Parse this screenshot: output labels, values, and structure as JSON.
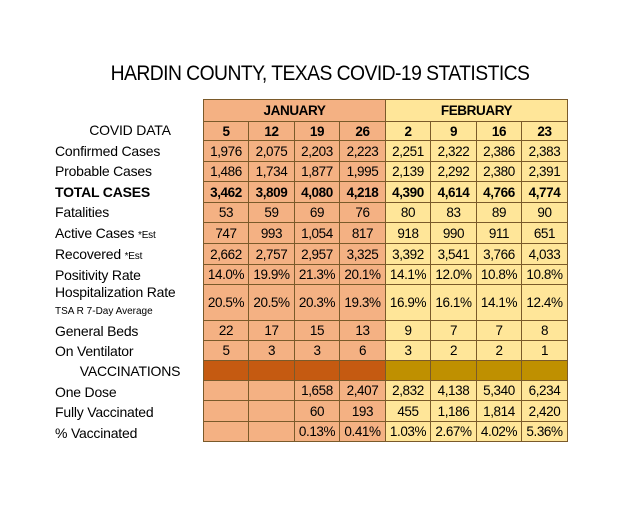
{
  "title": "HARDIN COUNTY, TEXAS COVID-19 STATISTICS",
  "months": {
    "january": "JANUARY",
    "february": "FEBRUARY"
  },
  "weeks": [
    "5",
    "12",
    "19",
    "26",
    "2",
    "9",
    "16",
    "23"
  ],
  "labels": {
    "covid_data": "COVID DATA",
    "confirmed": "Confirmed Cases",
    "probable": "Probable Cases",
    "total": "TOTAL CASES",
    "fatalities": "Fatalities",
    "active": "Active Cases",
    "active_note": "*Est",
    "recovered": "Recovered",
    "recovered_note": "*Est",
    "positivity": "Positivity Rate",
    "hospitalization": "Hospitalization Rate",
    "hospitalization_sub": "TSA R 7-Day Average",
    "general_beds": "General Beds",
    "ventilator": "On Ventilator",
    "vaccinations": "VACCINATIONS",
    "one_dose": "One Dose",
    "fully": "Fully Vaccinated",
    "pct": "% Vaccinated"
  },
  "rows": {
    "confirmed": [
      "1,976",
      "2,075",
      "2,203",
      "2,223",
      "2,251",
      "2,322",
      "2,386",
      "2,383"
    ],
    "probable": [
      "1,486",
      "1,734",
      "1,877",
      "1,995",
      "2,139",
      "2,292",
      "2,380",
      "2,391"
    ],
    "total": [
      "3,462",
      "3,809",
      "4,080",
      "4,218",
      "4,390",
      "4,614",
      "4,766",
      "4,774"
    ],
    "fatalities": [
      "53",
      "59",
      "69",
      "76",
      "80",
      "83",
      "89",
      "90"
    ],
    "active": [
      "747",
      "993",
      "1,054",
      "817",
      "918",
      "990",
      "911",
      "651"
    ],
    "recovered": [
      "2,662",
      "2,757",
      "2,957",
      "3,325",
      "3,392",
      "3,541",
      "3,766",
      "4,033"
    ],
    "positivity": [
      "14.0%",
      "19.9%",
      "21.3%",
      "20.1%",
      "14.1%",
      "12.0%",
      "10.8%",
      "10.8%"
    ],
    "hospitalization": [
      "20.5%",
      "20.5%",
      "20.3%",
      "19.3%",
      "16.9%",
      "16.1%",
      "14.1%",
      "12.4%"
    ],
    "general_beds": [
      "22",
      "17",
      "15",
      "13",
      "9",
      "7",
      "7",
      "8"
    ],
    "ventilator": [
      "5",
      "3",
      "3",
      "6",
      "3",
      "2",
      "2",
      "1"
    ],
    "one_dose": [
      "",
      "",
      "1,658",
      "2,407",
      "2,832",
      "4,138",
      "5,340",
      "6,234"
    ],
    "fully": [
      "",
      "",
      "60",
      "193",
      "455",
      "1,186",
      "1,814",
      "2,420"
    ],
    "pct": [
      "",
      "",
      "0.13%",
      "0.41%",
      "1.03%",
      "2.67%",
      "4.02%",
      "5.36%"
    ]
  },
  "colors": {
    "january_fill": "#f4b183",
    "february_fill": "#ffe699",
    "january_band": "#c55a11",
    "february_band": "#bf9000"
  }
}
